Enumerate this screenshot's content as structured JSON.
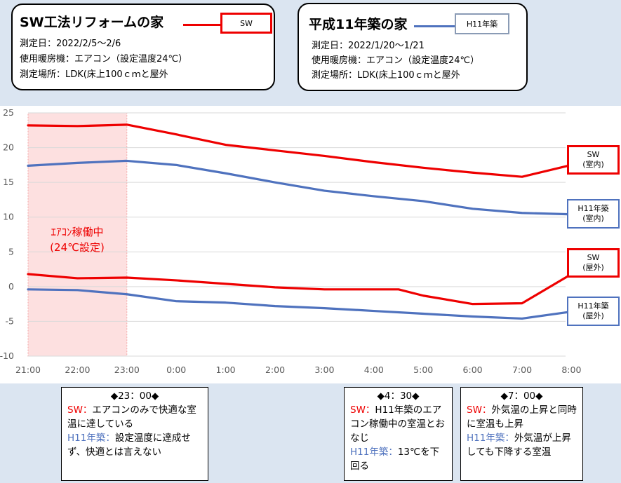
{
  "box_sw": {
    "title": "SW工法リフォームの家",
    "legend_tag": "SW",
    "date": "測定日：2022/2/5～2/6",
    "heater": "使用暖房機：エアコン（設定温度24℃）",
    "place": "測定場所：LDK(床上100ｃｍと屋外"
  },
  "box_h11": {
    "title": "平成11年築の家",
    "legend_tag": "H11年築",
    "date": "測定日：2022/1/20～1/21",
    "heater": "使用暖房機：エアコン（設定温度24℃）",
    "place": "測定場所：LDK(床上100ｃｍと屋外"
  },
  "region_label": {
    "line1": "ｴｱｺﾝ稼働中",
    "line2": "(24℃設定)"
  },
  "series_labels": {
    "sw_in": [
      "SW",
      "(室内)"
    ],
    "h11_in": [
      "H11年築",
      "(室内)"
    ],
    "sw_out": [
      "SW",
      "(屋外)"
    ],
    "h11_out": [
      "H11年築",
      "(屋外)"
    ]
  },
  "notes": {
    "n1": {
      "title": "◆23：00◆",
      "sw_label": "SW：",
      "sw_text": "エアコンのみで快適な室温に達している",
      "h11_label": "H11年築：",
      "h11_text": "設定温度に達成せず、快適とは言えない"
    },
    "n2": {
      "title": "◆4：30◆",
      "sw_label": "SW：",
      "sw_text": "H11年築のエアコン稼働中の室温とおなじ",
      "h11_label": "H11年築：",
      "h11_text": "13℃を下回る"
    },
    "n3": {
      "title": "◆7：00◆",
      "sw_label": "SW：",
      "sw_text": "外気温の上昇と同時に室温も上昇",
      "h11_label": "H11年築：",
      "h11_text": "外気温が上昇しても下降する室温"
    }
  },
  "colors": {
    "sw": "#ee0000",
    "h11": "#4f72be",
    "shade": "#fde0e0",
    "grid": "#d9d9d9"
  },
  "chart_data": {
    "type": "line",
    "x": [
      "21:00",
      "22:00",
      "23:00",
      "0:00",
      "1:00",
      "2:00",
      "3:00",
      "4:00",
      "5:00",
      "6:00",
      "7:00",
      "8:00"
    ],
    "ylim": [
      -10,
      25
    ],
    "yticks": [
      25,
      20,
      15,
      10,
      5,
      0,
      -5,
      -10
    ],
    "grid": "horizontal",
    "shaded_range": [
      "21:00",
      "23:00"
    ],
    "series": [
      {
        "key": "sw_in",
        "name": "SW (室内)",
        "color": "sw",
        "x": [
          0,
          1,
          2,
          3,
          4,
          5,
          6,
          7,
          8,
          9,
          10,
          11
        ],
        "values": [
          23.2,
          23.1,
          23.3,
          21.9,
          20.4,
          19.6,
          18.8,
          17.9,
          17.1,
          16.4,
          15.8,
          17.5
        ]
      },
      {
        "key": "h11_in",
        "name": "H11年築 (室内)",
        "color": "h11",
        "x": [
          0,
          1,
          2,
          3,
          4,
          5,
          6,
          7,
          8,
          9,
          10,
          11
        ],
        "values": [
          17.4,
          17.8,
          18.1,
          17.5,
          16.3,
          15.0,
          13.8,
          13.0,
          12.3,
          11.2,
          10.6,
          10.4
        ]
      },
      {
        "key": "sw_out",
        "name": "SW (屋外)",
        "color": "sw",
        "x": [
          0,
          1,
          2,
          3,
          4,
          5,
          6,
          7,
          7.5,
          8,
          9,
          10,
          11
        ],
        "values": [
          1.8,
          1.2,
          1.3,
          0.9,
          0.4,
          -0.1,
          -0.4,
          -0.4,
          -0.4,
          -1.3,
          -2.5,
          -2.4,
          1.8
        ]
      },
      {
        "key": "h11_out",
        "name": "H11年築 (屋外)",
        "color": "h11",
        "x": [
          0,
          1,
          2,
          3,
          4,
          5,
          6,
          7,
          8,
          9,
          10,
          11
        ],
        "values": [
          -0.4,
          -0.5,
          -1.1,
          -2.1,
          -2.3,
          -2.8,
          -3.1,
          -3.5,
          -3.9,
          -4.3,
          -4.6,
          -3.6
        ]
      }
    ]
  }
}
